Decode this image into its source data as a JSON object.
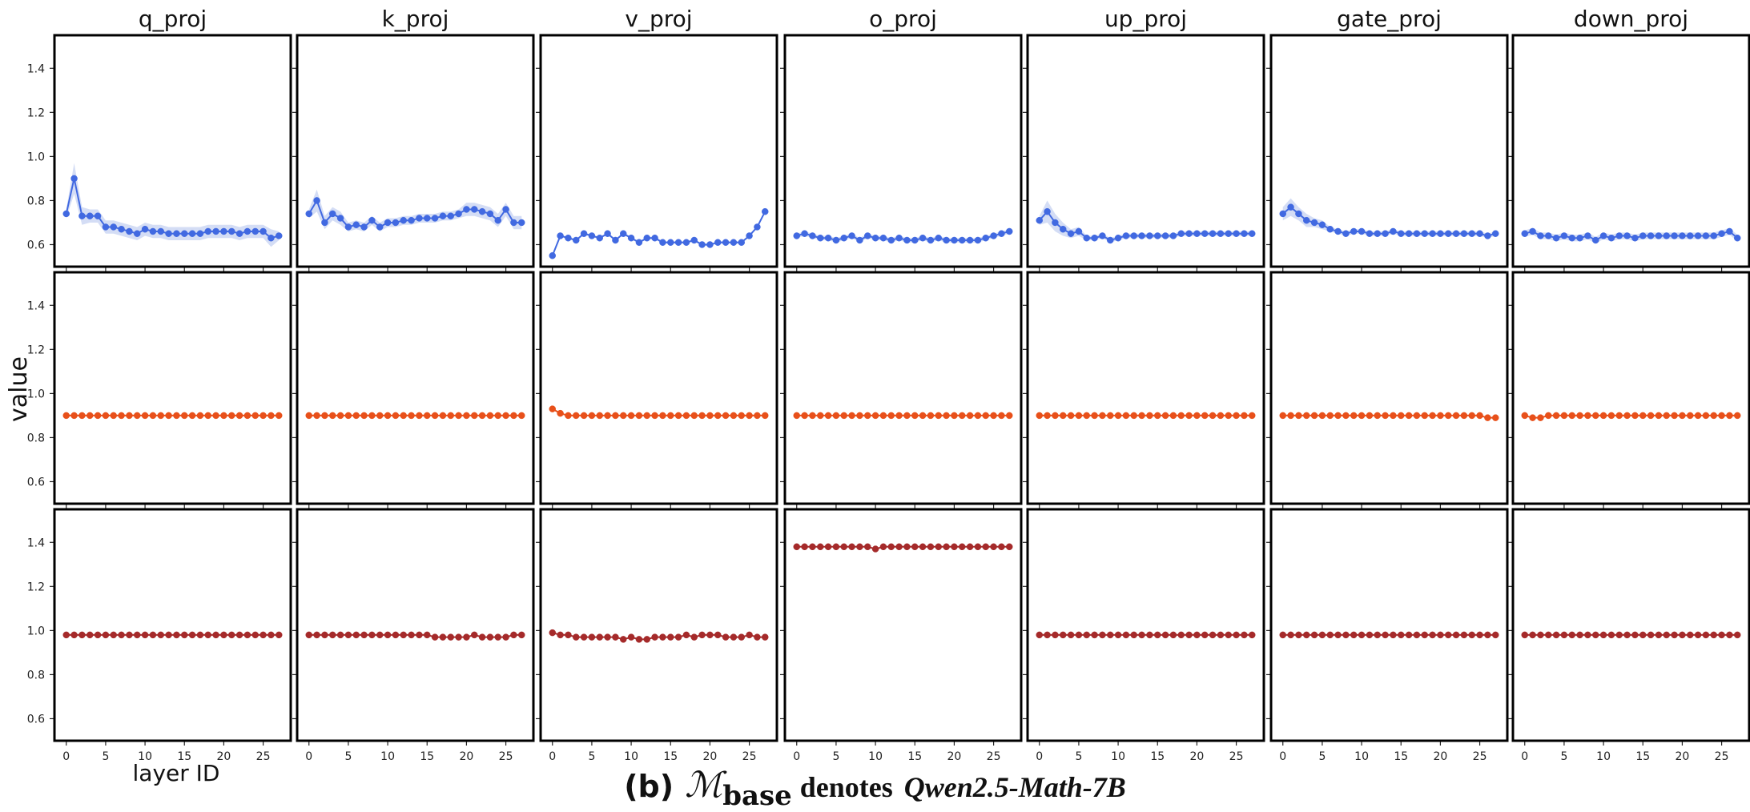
{
  "chart_data": {
    "type": "line",
    "layout": "3 rows x 7 columns grid of small multiples",
    "columns": [
      "q_proj",
      "k_proj",
      "v_proj",
      "o_proj",
      "up_proj",
      "gate_proj",
      "down_proj"
    ],
    "ylabel": "value",
    "xlabel": "layer ID",
    "ylim": [
      0.5,
      1.55
    ],
    "yticks": [
      "0.6",
      "0.8",
      "1.0",
      "1.2",
      "1.4"
    ],
    "xlim": [
      -1.5,
      28.5
    ],
    "xticks": [
      "0",
      "5",
      "10",
      "15",
      "20",
      "25"
    ],
    "x": [
      0,
      1,
      2,
      3,
      4,
      5,
      6,
      7,
      8,
      9,
      10,
      11,
      12,
      13,
      14,
      15,
      16,
      17,
      18,
      19,
      20,
      21,
      22,
      23,
      24,
      25,
      26,
      27
    ],
    "rows": [
      {
        "color": "#4169E1",
        "band_color": "#c6d2f2",
        "panels": [
          {
            "name": "q_proj",
            "values": [
              0.74,
              0.9,
              0.73,
              0.73,
              0.73,
              0.68,
              0.68,
              0.67,
              0.66,
              0.65,
              0.67,
              0.66,
              0.66,
              0.65,
              0.65,
              0.65,
              0.65,
              0.65,
              0.66,
              0.66,
              0.66,
              0.66,
              0.65,
              0.66,
              0.66,
              0.66,
              0.63,
              0.64
            ],
            "band": [
              0.02,
              0.07,
              0.04,
              0.03,
              0.03,
              0.03,
              0.03,
              0.03,
              0.03,
              0.03,
              0.03,
              0.03,
              0.03,
              0.03,
              0.03,
              0.03,
              0.03,
              0.03,
              0.03,
              0.03,
              0.03,
              0.03,
              0.03,
              0.03,
              0.03,
              0.03,
              0.04,
              0.02
            ]
          },
          {
            "name": "k_proj",
            "values": [
              0.74,
              0.8,
              0.7,
              0.74,
              0.72,
              0.68,
              0.69,
              0.68,
              0.71,
              0.68,
              0.7,
              0.7,
              0.71,
              0.71,
              0.72,
              0.72,
              0.72,
              0.73,
              0.73,
              0.74,
              0.76,
              0.76,
              0.75,
              0.74,
              0.71,
              0.76,
              0.7,
              0.7
            ],
            "band": [
              0.02,
              0.05,
              0.03,
              0.03,
              0.03,
              0.02,
              0.02,
              0.02,
              0.02,
              0.02,
              0.02,
              0.02,
              0.02,
              0.02,
              0.02,
              0.02,
              0.02,
              0.02,
              0.02,
              0.02,
              0.03,
              0.03,
              0.03,
              0.03,
              0.03,
              0.03,
              0.03,
              0.03
            ]
          },
          {
            "name": "v_proj",
            "values": [
              0.55,
              0.64,
              0.63,
              0.62,
              0.65,
              0.64,
              0.63,
              0.65,
              0.62,
              0.65,
              0.63,
              0.61,
              0.63,
              0.63,
              0.61,
              0.61,
              0.61,
              0.61,
              0.62,
              0.6,
              0.6,
              0.61,
              0.61,
              0.61,
              0.61,
              0.64,
              0.68,
              0.75
            ],
            "band": [
              0.005,
              0.005,
              0.005,
              0.005,
              0.005,
              0.005,
              0.005,
              0.005,
              0.005,
              0.005,
              0.005,
              0.005,
              0.005,
              0.005,
              0.005,
              0.005,
              0.005,
              0.005,
              0.005,
              0.005,
              0.005,
              0.005,
              0.005,
              0.005,
              0.005,
              0.005,
              0.005,
              0.005
            ]
          },
          {
            "name": "o_proj",
            "values": [
              0.64,
              0.65,
              0.64,
              0.63,
              0.63,
              0.62,
              0.63,
              0.64,
              0.62,
              0.64,
              0.63,
              0.63,
              0.62,
              0.63,
              0.62,
              0.62,
              0.63,
              0.62,
              0.63,
              0.62,
              0.62,
              0.62,
              0.62,
              0.62,
              0.63,
              0.64,
              0.65,
              0.66
            ],
            "band": [
              0.01,
              0.01,
              0.01,
              0.01,
              0.01,
              0.01,
              0.01,
              0.01,
              0.01,
              0.01,
              0.01,
              0.01,
              0.01,
              0.01,
              0.01,
              0.01,
              0.01,
              0.01,
              0.01,
              0.01,
              0.01,
              0.01,
              0.01,
              0.01,
              0.01,
              0.01,
              0.01,
              0.01
            ]
          },
          {
            "name": "up_proj",
            "values": [
              0.71,
              0.75,
              0.7,
              0.67,
              0.65,
              0.66,
              0.63,
              0.63,
              0.64,
              0.62,
              0.63,
              0.64,
              0.64,
              0.64,
              0.64,
              0.64,
              0.64,
              0.64,
              0.65,
              0.65,
              0.65,
              0.65,
              0.65,
              0.65,
              0.65,
              0.65,
              0.65,
              0.65
            ],
            "band": [
              0.02,
              0.05,
              0.04,
              0.03,
              0.02,
              0.02,
              0.01,
              0.01,
              0.01,
              0.01,
              0.01,
              0.01,
              0.01,
              0.01,
              0.01,
              0.01,
              0.01,
              0.01,
              0.01,
              0.01,
              0.01,
              0.01,
              0.01,
              0.01,
              0.01,
              0.01,
              0.01,
              0.01
            ]
          },
          {
            "name": "gate_proj",
            "values": [
              0.74,
              0.77,
              0.74,
              0.71,
              0.7,
              0.69,
              0.67,
              0.66,
              0.65,
              0.66,
              0.66,
              0.65,
              0.65,
              0.65,
              0.66,
              0.65,
              0.65,
              0.65,
              0.65,
              0.65,
              0.65,
              0.65,
              0.65,
              0.65,
              0.65,
              0.65,
              0.64,
              0.65
            ],
            "band": [
              0.03,
              0.04,
              0.03,
              0.03,
              0.02,
              0.02,
              0.01,
              0.01,
              0.01,
              0.01,
              0.01,
              0.01,
              0.01,
              0.01,
              0.01,
              0.01,
              0.01,
              0.01,
              0.01,
              0.01,
              0.01,
              0.01,
              0.01,
              0.01,
              0.01,
              0.01,
              0.01,
              0.01
            ]
          },
          {
            "name": "down_proj",
            "values": [
              0.65,
              0.66,
              0.64,
              0.64,
              0.63,
              0.64,
              0.63,
              0.63,
              0.64,
              0.62,
              0.64,
              0.63,
              0.64,
              0.64,
              0.63,
              0.64,
              0.64,
              0.64,
              0.64,
              0.64,
              0.64,
              0.64,
              0.64,
              0.64,
              0.64,
              0.65,
              0.66,
              0.63
            ],
            "band": [
              0.015,
              0.015,
              0.015,
              0.015,
              0.015,
              0.015,
              0.015,
              0.015,
              0.015,
              0.015,
              0.015,
              0.015,
              0.015,
              0.015,
              0.015,
              0.015,
              0.015,
              0.015,
              0.015,
              0.015,
              0.015,
              0.015,
              0.015,
              0.015,
              0.015,
              0.015,
              0.015,
              0.015
            ]
          }
        ]
      },
      {
        "color": "#E8501A",
        "band_color": "",
        "panels": [
          {
            "name": "q_proj",
            "values": [
              0.9,
              0.9,
              0.9,
              0.9,
              0.9,
              0.9,
              0.9,
              0.9,
              0.9,
              0.9,
              0.9,
              0.9,
              0.9,
              0.9,
              0.9,
              0.9,
              0.9,
              0.9,
              0.9,
              0.9,
              0.9,
              0.9,
              0.9,
              0.9,
              0.9,
              0.9,
              0.9,
              0.9
            ]
          },
          {
            "name": "k_proj",
            "values": [
              0.9,
              0.9,
              0.9,
              0.9,
              0.9,
              0.9,
              0.9,
              0.9,
              0.9,
              0.9,
              0.9,
              0.9,
              0.9,
              0.9,
              0.9,
              0.9,
              0.9,
              0.9,
              0.9,
              0.9,
              0.9,
              0.9,
              0.9,
              0.9,
              0.9,
              0.9,
              0.9,
              0.9
            ]
          },
          {
            "name": "v_proj",
            "values": [
              0.93,
              0.91,
              0.9,
              0.9,
              0.9,
              0.9,
              0.9,
              0.9,
              0.9,
              0.9,
              0.9,
              0.9,
              0.9,
              0.9,
              0.9,
              0.9,
              0.9,
              0.9,
              0.9,
              0.9,
              0.9,
              0.9,
              0.9,
              0.9,
              0.9,
              0.9,
              0.9,
              0.9
            ]
          },
          {
            "name": "o_proj",
            "values": [
              0.9,
              0.9,
              0.9,
              0.9,
              0.9,
              0.9,
              0.9,
              0.9,
              0.9,
              0.9,
              0.9,
              0.9,
              0.9,
              0.9,
              0.9,
              0.9,
              0.9,
              0.9,
              0.9,
              0.9,
              0.9,
              0.9,
              0.9,
              0.9,
              0.9,
              0.9,
              0.9,
              0.9
            ]
          },
          {
            "name": "up_proj",
            "values": [
              0.9,
              0.9,
              0.9,
              0.9,
              0.9,
              0.9,
              0.9,
              0.9,
              0.9,
              0.9,
              0.9,
              0.9,
              0.9,
              0.9,
              0.9,
              0.9,
              0.9,
              0.9,
              0.9,
              0.9,
              0.9,
              0.9,
              0.9,
              0.9,
              0.9,
              0.9,
              0.9,
              0.9
            ]
          },
          {
            "name": "gate_proj",
            "values": [
              0.9,
              0.9,
              0.9,
              0.9,
              0.9,
              0.9,
              0.9,
              0.9,
              0.9,
              0.9,
              0.9,
              0.9,
              0.9,
              0.9,
              0.9,
              0.9,
              0.9,
              0.9,
              0.9,
              0.9,
              0.9,
              0.9,
              0.9,
              0.9,
              0.9,
              0.9,
              0.89,
              0.89
            ]
          },
          {
            "name": "down_proj",
            "values": [
              0.9,
              0.89,
              0.89,
              0.9,
              0.9,
              0.9,
              0.9,
              0.9,
              0.9,
              0.9,
              0.9,
              0.9,
              0.9,
              0.9,
              0.9,
              0.9,
              0.9,
              0.9,
              0.9,
              0.9,
              0.9,
              0.9,
              0.9,
              0.9,
              0.9,
              0.9,
              0.9,
              0.9
            ]
          }
        ]
      },
      {
        "color": "#A52A2A",
        "band_color": "",
        "panels": [
          {
            "name": "q_proj",
            "values": [
              0.98,
              0.98,
              0.98,
              0.98,
              0.98,
              0.98,
              0.98,
              0.98,
              0.98,
              0.98,
              0.98,
              0.98,
              0.98,
              0.98,
              0.98,
              0.98,
              0.98,
              0.98,
              0.98,
              0.98,
              0.98,
              0.98,
              0.98,
              0.98,
              0.98,
              0.98,
              0.98,
              0.98
            ]
          },
          {
            "name": "k_proj",
            "values": [
              0.98,
              0.98,
              0.98,
              0.98,
              0.98,
              0.98,
              0.98,
              0.98,
              0.98,
              0.98,
              0.98,
              0.98,
              0.98,
              0.98,
              0.98,
              0.98,
              0.97,
              0.97,
              0.97,
              0.97,
              0.97,
              0.98,
              0.97,
              0.97,
              0.97,
              0.97,
              0.98,
              0.98
            ]
          },
          {
            "name": "v_proj",
            "values": [
              0.99,
              0.98,
              0.98,
              0.97,
              0.97,
              0.97,
              0.97,
              0.97,
              0.97,
              0.96,
              0.97,
              0.96,
              0.96,
              0.97,
              0.97,
              0.97,
              0.97,
              0.98,
              0.97,
              0.98,
              0.98,
              0.98,
              0.97,
              0.97,
              0.97,
              0.98,
              0.97,
              0.97
            ]
          },
          {
            "name": "o_proj",
            "values": [
              1.38,
              1.38,
              1.38,
              1.38,
              1.38,
              1.38,
              1.38,
              1.38,
              1.38,
              1.38,
              1.37,
              1.38,
              1.38,
              1.38,
              1.38,
              1.38,
              1.38,
              1.38,
              1.38,
              1.38,
              1.38,
              1.38,
              1.38,
              1.38,
              1.38,
              1.38,
              1.38,
              1.38
            ]
          },
          {
            "name": "up_proj",
            "values": [
              0.98,
              0.98,
              0.98,
              0.98,
              0.98,
              0.98,
              0.98,
              0.98,
              0.98,
              0.98,
              0.98,
              0.98,
              0.98,
              0.98,
              0.98,
              0.98,
              0.98,
              0.98,
              0.98,
              0.98,
              0.98,
              0.98,
              0.98,
              0.98,
              0.98,
              0.98,
              0.98,
              0.98
            ]
          },
          {
            "name": "gate_proj",
            "values": [
              0.98,
              0.98,
              0.98,
              0.98,
              0.98,
              0.98,
              0.98,
              0.98,
              0.98,
              0.98,
              0.98,
              0.98,
              0.98,
              0.98,
              0.98,
              0.98,
              0.98,
              0.98,
              0.98,
              0.98,
              0.98,
              0.98,
              0.98,
              0.98,
              0.98,
              0.98,
              0.98,
              0.98
            ]
          },
          {
            "name": "down_proj",
            "values": [
              0.98,
              0.98,
              0.98,
              0.98,
              0.98,
              0.98,
              0.98,
              0.98,
              0.98,
              0.98,
              0.98,
              0.98,
              0.98,
              0.98,
              0.98,
              0.98,
              0.98,
              0.98,
              0.98,
              0.98,
              0.98,
              0.98,
              0.98,
              0.98,
              0.98,
              0.98,
              0.98,
              0.98
            ]
          }
        ]
      }
    ]
  },
  "caption": {
    "prefix": "(b)",
    "symbol": "ℳ",
    "subscript": "base",
    "middle": "denotes",
    "model": "Qwen2.5-Math-7B"
  }
}
